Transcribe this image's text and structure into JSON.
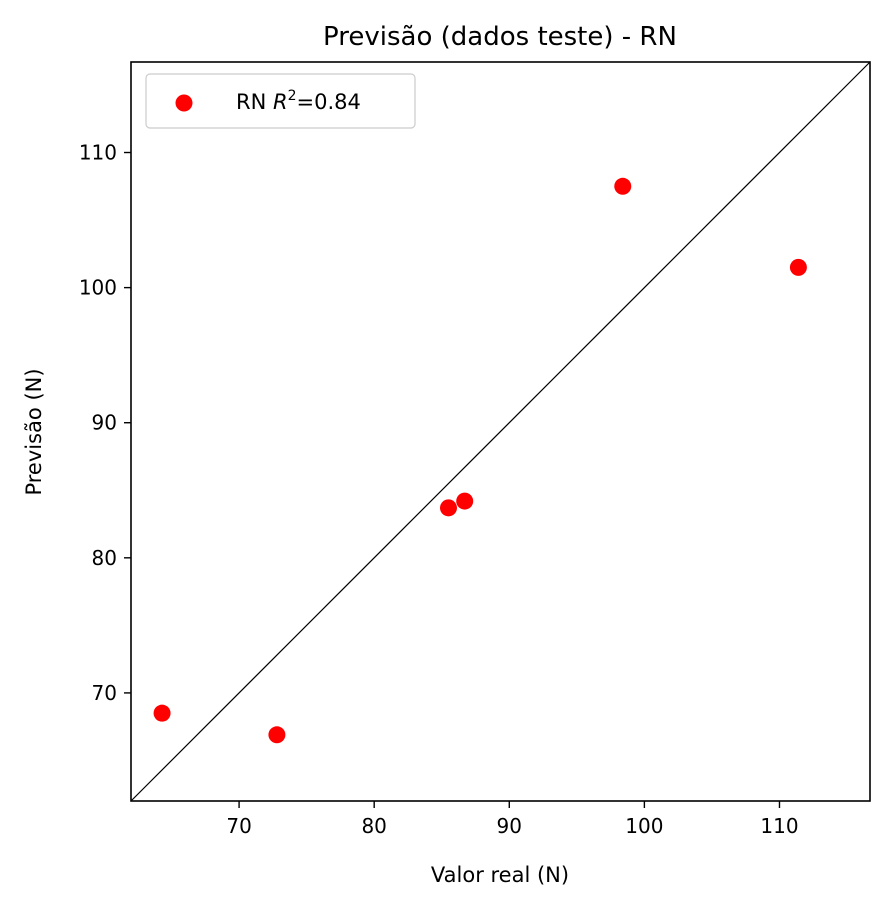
{
  "chart_data": {
    "type": "scatter",
    "title": "Previsão (dados teste) - RN",
    "xlabel": "Valor real (N)",
    "ylabel": "Previsão (N)",
    "xlim": [
      62.0,
      116.7
    ],
    "ylim": [
      62.0,
      116.7
    ],
    "xticks": [
      70,
      80,
      90,
      100,
      110
    ],
    "yticks": [
      70,
      80,
      90,
      100,
      110
    ],
    "grid": false,
    "legend_position": "top-left",
    "legend": {
      "prefix": "RN ",
      "r": "R",
      "sup": "2",
      "suffix": "=0.84"
    },
    "reference_line": "y = x",
    "series": [
      {
        "color": "#ff0000",
        "points": [
          {
            "x": 64.3,
            "y": 68.5
          },
          {
            "x": 72.8,
            "y": 66.9
          },
          {
            "x": 85.5,
            "y": 83.7
          },
          {
            "x": 86.7,
            "y": 84.2
          },
          {
            "x": 98.4,
            "y": 107.5
          },
          {
            "x": 111.4,
            "y": 101.5
          }
        ]
      }
    ]
  }
}
